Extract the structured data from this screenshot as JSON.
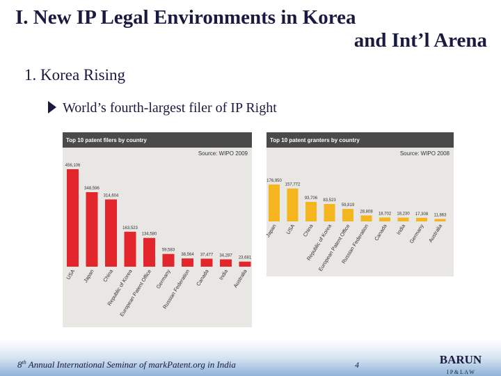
{
  "slide": {
    "title_line1": "I. New IP Legal Environments in Korea",
    "title_line2": "and Int’l Arena",
    "section": "1. Korea Rising",
    "bullet": "World’s fourth-largest filer of IP Right",
    "footer_num": "8",
    "footer_sup": "th",
    "footer_text": " Annual International Seminar of markPatent.org in India",
    "page": "4",
    "logo": "BARUN",
    "logo_sub": "I P & L A W"
  },
  "chart_data": [
    {
      "type": "bar",
      "title": "Top 10 patent filers by country",
      "source": "Source: WIPO 2009",
      "categories": [
        "USA",
        "Japan",
        "China",
        "Republic of Korea",
        "European Patent Office",
        "Germany",
        "Russian Federation",
        "Canada",
        "India",
        "Australia"
      ],
      "values": [
        456106,
        348596,
        314604,
        163523,
        134580,
        59583,
        38564,
        37477,
        34287,
        23681
      ],
      "value_labels": [
        "456,106",
        "348,596",
        "314,604",
        "163,523",
        "134,580",
        "59,583",
        "38,564",
        "37,477",
        "34,287",
        "23,681"
      ],
      "color": "#e3262b"
    },
    {
      "type": "bar",
      "title": "Top 10 patent granters by country",
      "source": "Source: WIPO 2008",
      "categories": [
        "Japan",
        "USA",
        "China",
        "Republic of Korea",
        "European Patent Office",
        "Russian Federation",
        "Canada",
        "India",
        "Germany",
        "Australia"
      ],
      "values": [
        176950,
        157772,
        93706,
        83523,
        59819,
        28808,
        18702,
        18230,
        17308,
        11863
      ],
      "value_labels": [
        "176,950",
        "157,772",
        "93,706",
        "83,523",
        "59,819",
        "28,808",
        "18,702",
        "18,230",
        "17,308",
        "11,863"
      ],
      "color": "#f5b51f"
    }
  ]
}
